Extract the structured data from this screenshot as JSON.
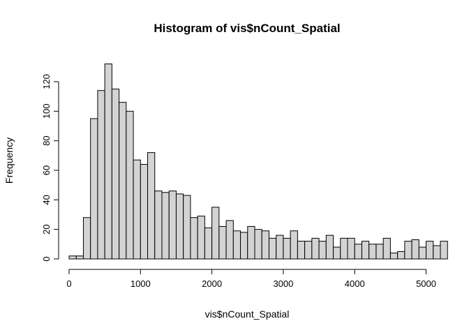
{
  "chart_data": {
    "type": "bar",
    "title": "Histogram of vis$nCount_Spatial",
    "xlabel": "vis$nCount_Spatial",
    "ylabel": "Frequency",
    "bin_width": 100,
    "bin_start": 0,
    "xlim": [
      0,
      5200
    ],
    "ylim": [
      0,
      132
    ],
    "x_ticks": [
      0,
      1000,
      2000,
      3000,
      4000,
      5000
    ],
    "y_ticks": [
      0,
      20,
      40,
      60,
      80,
      100,
      120
    ],
    "grid": false,
    "bar_color": "#d3d3d3",
    "values": [
      2,
      2,
      28,
      95,
      114,
      132,
      115,
      106,
      100,
      67,
      64,
      72,
      46,
      45,
      46,
      44,
      43,
      28,
      29,
      21,
      35,
      22,
      26,
      19,
      18,
      22,
      20,
      19,
      14,
      16,
      14,
      19,
      12,
      12,
      14,
      12,
      16,
      8,
      14,
      14,
      10,
      12,
      10,
      10,
      14,
      4,
      5,
      12,
      13,
      8,
      12,
      9,
      12
    ]
  }
}
